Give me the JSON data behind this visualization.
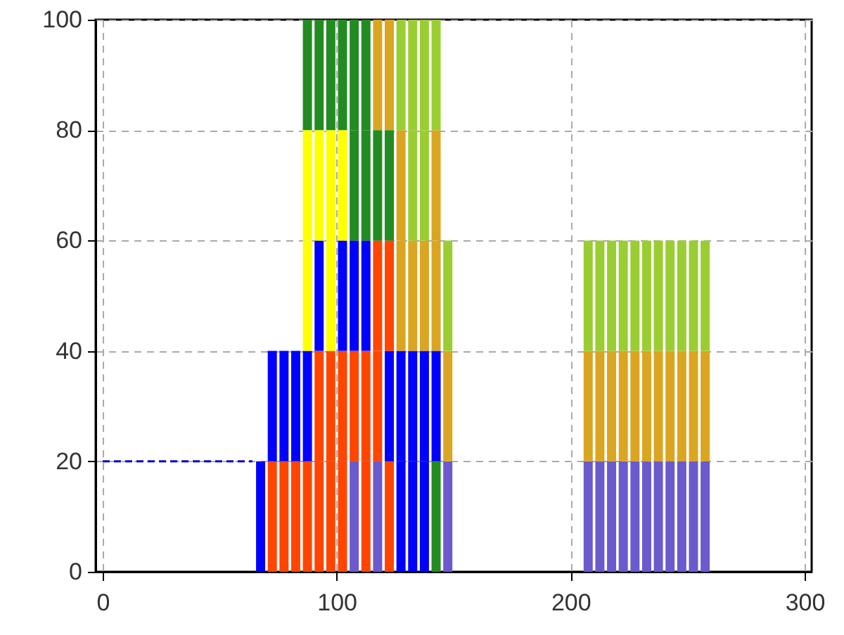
{
  "chart_data": {
    "type": "bar",
    "stacked": true,
    "x": [
      67.5,
      72.5,
      77.5,
      82.5,
      87.5,
      92.5,
      97.5,
      102.5,
      107.5,
      112.5,
      117.5,
      122.5,
      127.5,
      132.5,
      137.5,
      142.5,
      147.5,
      207.5,
      212.5,
      217.5,
      222.5,
      227.5,
      232.5,
      237.5,
      242.5,
      247.5,
      252.5,
      257.5
    ],
    "series": [
      {
        "values": [
          20,
          20,
          20,
          20,
          20,
          20,
          20,
          20,
          20,
          20,
          20,
          20,
          20,
          20,
          20,
          20,
          20,
          20,
          20,
          20,
          20,
          20,
          20,
          20,
          20,
          20,
          20,
          20
        ],
        "colors": [
          "#0000ff",
          "#ff4500",
          "#ff4500",
          "#ff4500",
          "#ff4500",
          "#ff4500",
          "#ff4500",
          "#ff4500",
          "#6a5acd",
          "#ff4500",
          "#6a5acd",
          "#ff4500",
          "#0000ff",
          "#0000ff",
          "#0000ff",
          "#228b22",
          "#6a5acd",
          "#6a5acd",
          "#6a5acd",
          "#6a5acd",
          "#6a5acd",
          "#6a5acd",
          "#6a5acd",
          "#6a5acd",
          "#6a5acd",
          "#6a5acd",
          "#6a5acd",
          "#6a5acd"
        ]
      },
      {
        "values": [
          null,
          20,
          20,
          20,
          20,
          20,
          20,
          20,
          20,
          20,
          20,
          20,
          20,
          20,
          20,
          20,
          20,
          20,
          20,
          20,
          20,
          20,
          20,
          20,
          20,
          20,
          20,
          20
        ],
        "colors": [
          null,
          "#0000ff",
          "#0000ff",
          "#0000ff",
          "#0000ff",
          "#ff4500",
          "#ff4500",
          "#ff4500",
          "#ff4500",
          "#ff4500",
          "#ff4500",
          "#0000ff",
          "#0000ff",
          "#0000ff",
          "#0000ff",
          "#0000ff",
          "#daa520",
          "#daa520",
          "#daa520",
          "#daa520",
          "#daa520",
          "#daa520",
          "#daa520",
          "#daa520",
          "#daa520",
          "#daa520",
          "#daa520",
          "#daa520"
        ]
      },
      {
        "values": [
          null,
          null,
          null,
          null,
          20,
          20,
          20,
          20,
          20,
          20,
          20,
          20,
          20,
          20,
          20,
          20,
          20,
          20,
          20,
          20,
          20,
          20,
          20,
          20,
          20,
          20,
          20,
          20
        ],
        "colors": [
          null,
          null,
          null,
          null,
          "#ffff00",
          "#0000ff",
          "#ffff00",
          "#0000ff",
          "#0000ff",
          "#0000ff",
          "#ff4500",
          "#ff4500",
          "#daa520",
          "#daa520",
          "#daa520",
          "#daa520",
          "#9acd32",
          "#9acd32",
          "#9acd32",
          "#9acd32",
          "#9acd32",
          "#9acd32",
          "#9acd32",
          "#9acd32",
          "#9acd32",
          "#9acd32",
          "#9acd32",
          "#9acd32"
        ]
      },
      {
        "values": [
          null,
          null,
          null,
          null,
          20,
          20,
          20,
          20,
          20,
          20,
          20,
          20,
          20,
          20,
          20,
          20,
          null,
          null,
          null,
          null,
          null,
          null,
          null,
          null,
          null,
          null,
          null,
          null
        ],
        "colors": [
          null,
          null,
          null,
          null,
          "#ffff00",
          "#ffff00",
          "#ffff00",
          "#ffff00",
          "#228b22",
          "#228b22",
          "#228b22",
          "#228b22",
          "#daa520",
          "#9acd32",
          "#9acd32",
          "#daa520",
          null,
          null,
          null,
          null,
          null,
          null,
          null,
          null,
          null,
          null,
          null,
          null
        ]
      },
      {
        "values": [
          null,
          null,
          null,
          null,
          20,
          20,
          20,
          20,
          20,
          20,
          20,
          20,
          20,
          20,
          20,
          20,
          null,
          null,
          null,
          null,
          null,
          null,
          null,
          null,
          null,
          null,
          null,
          null
        ],
        "colors": [
          null,
          null,
          null,
          null,
          "#228b22",
          "#228b22",
          "#228b22",
          "#228b22",
          "#228b22",
          "#228b22",
          "#daa520",
          "#daa520",
          "#9acd32",
          "#9acd32",
          "#9acd32",
          "#9acd32",
          null,
          null,
          null,
          null,
          null,
          null,
          null,
          null,
          null,
          null,
          null,
          null
        ]
      },
      {
        "type": "line",
        "x": [
          0,
          64
        ],
        "values": [
          20,
          20
        ],
        "color": "#0000cd",
        "line_style": "dashed"
      }
    ],
    "xlim": [
      0,
      300
    ],
    "xticks": [
      0,
      100,
      200,
      300
    ],
    "ylim": [
      0,
      100
    ],
    "yticks": [
      0,
      20,
      40,
      60,
      80,
      100
    ],
    "grid": true
  }
}
